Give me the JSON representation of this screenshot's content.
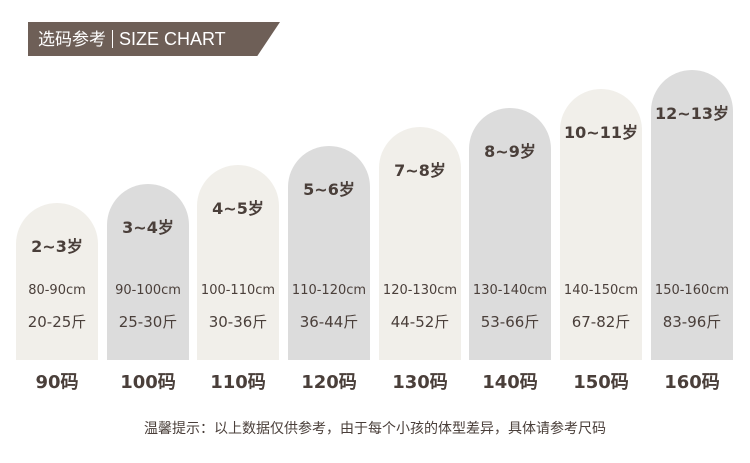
{
  "banner": {
    "cn": "选码参考",
    "en": "SIZE CHART"
  },
  "columns": [
    {
      "age": "2~3岁",
      "height": "80-90cm",
      "weight": "20-25斤",
      "size": "90码",
      "color": "#f1efea"
    },
    {
      "age": "3~4岁",
      "height": "90-100cm",
      "weight": "25-30斤",
      "size": "100码",
      "color": "#dcdcdc"
    },
    {
      "age": "4~5岁",
      "height": "100-110cm",
      "weight": "30-36斤",
      "size": "110码",
      "color": "#f1efea"
    },
    {
      "age": "5~6岁",
      "height": "110-120cm",
      "weight": "36-44斤",
      "size": "120码",
      "color": "#dcdcdc"
    },
    {
      "age": "7~8岁",
      "height": "120-130cm",
      "weight": "44-52斤",
      "size": "130码",
      "color": "#f1efea"
    },
    {
      "age": "8~9岁",
      "height": "130-140cm",
      "weight": "53-66斤",
      "size": "140码",
      "color": "#dcdcdc"
    },
    {
      "age": "10~11岁",
      "height": "140-150cm",
      "weight": "67-82斤",
      "size": "150码",
      "color": "#f1efea"
    },
    {
      "age": "12~13岁",
      "height": "150-160cm",
      "weight": "83-96斤",
      "size": "160码",
      "color": "#dcdcdc"
    }
  ],
  "note": "温馨提示：以上数据仅供参考，由于每个小孩的体型差异，具体请参考尺码"
}
